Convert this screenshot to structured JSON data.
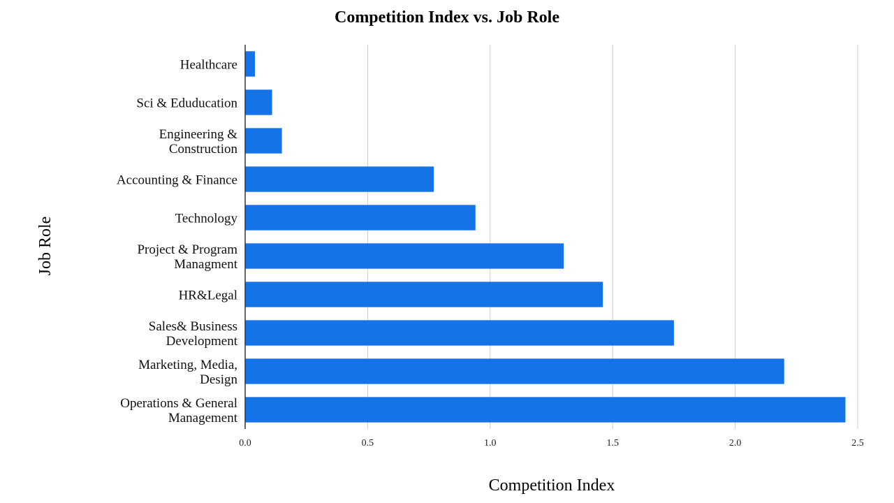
{
  "chart_data": {
    "type": "bar",
    "orientation": "horizontal",
    "title": "Competition Index  vs.  Job Role",
    "xlabel": "Competition Index",
    "ylabel": "Job Role",
    "xlim": [
      0,
      2.5
    ],
    "x_ticks": [
      "0.0",
      "0.5",
      "1.0",
      "1.5",
      "2.0",
      "2.5"
    ],
    "x_tick_values": [
      0,
      0.5,
      1.0,
      1.5,
      2.0,
      2.5
    ],
    "grid": "vertical",
    "legend": "none",
    "bar_color": "#1473e6",
    "categories": [
      [
        "Healthcare"
      ],
      [
        "Sci & Eduducation"
      ],
      [
        "Engineering &",
        "Construction"
      ],
      [
        "Accounting & Finance"
      ],
      [
        "Technology"
      ],
      [
        "Project & Program",
        "Managment"
      ],
      [
        "HR&Legal"
      ],
      [
        "Sales& Business",
        "Development"
      ],
      [
        "Marketing, Media,",
        "Design"
      ],
      [
        "Operations & General",
        "Management"
      ]
    ],
    "values": [
      0.04,
      0.11,
      0.15,
      0.77,
      0.94,
      1.3,
      1.46,
      1.75,
      2.2,
      2.45
    ]
  }
}
